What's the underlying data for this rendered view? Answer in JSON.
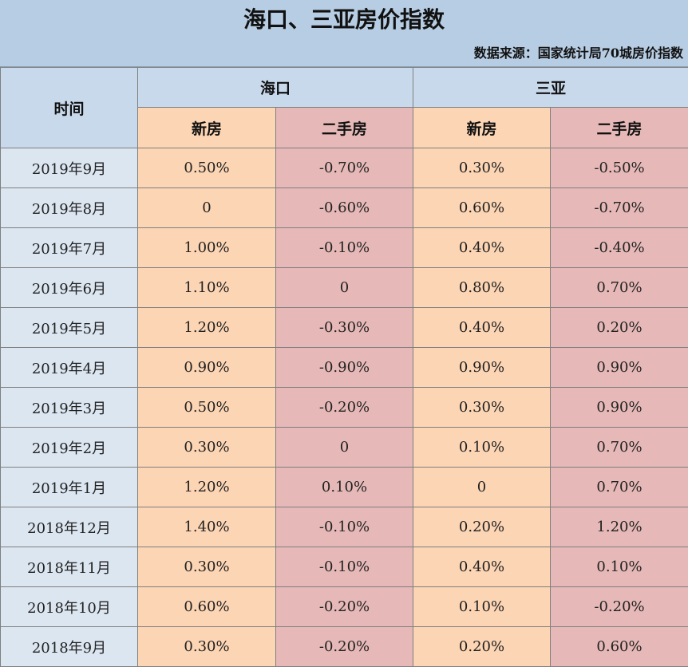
{
  "title": "海口、三亚房价指数",
  "source": "数据来源：国家统计局70城房价指数",
  "header": {
    "time_label": "时间",
    "cities": [
      "海口",
      "三亚"
    ],
    "new_label": "新房",
    "used_label": "二手房"
  },
  "rows": [
    {
      "time": "2019年9月",
      "hk_new": "0.50%",
      "hk_used": "-0.70%",
      "sy_new": "0.30%",
      "sy_used": "-0.50%"
    },
    {
      "time": "2019年8月",
      "hk_new": "0",
      "hk_used": "-0.60%",
      "sy_new": "0.60%",
      "sy_used": "-0.70%"
    },
    {
      "time": "2019年7月",
      "hk_new": "1.00%",
      "hk_used": "-0.10%",
      "sy_new": "0.40%",
      "sy_used": "-0.40%"
    },
    {
      "time": "2019年6月",
      "hk_new": "1.10%",
      "hk_used": "0",
      "sy_new": "0.80%",
      "sy_used": "0.70%"
    },
    {
      "time": "2019年5月",
      "hk_new": "1.20%",
      "hk_used": "-0.30%",
      "sy_new": "0.40%",
      "sy_used": "0.20%"
    },
    {
      "time": "2019年4月",
      "hk_new": "0.90%",
      "hk_used": "-0.90%",
      "sy_new": "0.90%",
      "sy_used": "0.90%"
    },
    {
      "time": "2019年3月",
      "hk_new": "0.50%",
      "hk_used": "-0.20%",
      "sy_new": "0.30%",
      "sy_used": "0.90%"
    },
    {
      "time": "2019年2月",
      "hk_new": "0.30%",
      "hk_used": "0",
      "sy_new": "0.10%",
      "sy_used": "0.70%"
    },
    {
      "time": "2019年1月",
      "hk_new": "1.20%",
      "hk_used": "0.10%",
      "sy_new": "0",
      "sy_used": "0.70%"
    },
    {
      "time": "2018年12月",
      "hk_new": "1.40%",
      "hk_used": "-0.10%",
      "sy_new": "0.20%",
      "sy_used": "1.20%"
    },
    {
      "time": "2018年11月",
      "hk_new": "0.30%",
      "hk_used": "-0.10%",
      "sy_new": "0.40%",
      "sy_used": "0.10%"
    },
    {
      "time": "2018年10月",
      "hk_new": "0.60%",
      "hk_used": "-0.20%",
      "sy_new": "0.10%",
      "sy_used": "-0.20%"
    },
    {
      "time": "2018年9月",
      "hk_new": "0.30%",
      "hk_used": "-0.20%",
      "sy_new": "0.20%",
      "sy_used": "0.60%"
    }
  ]
}
